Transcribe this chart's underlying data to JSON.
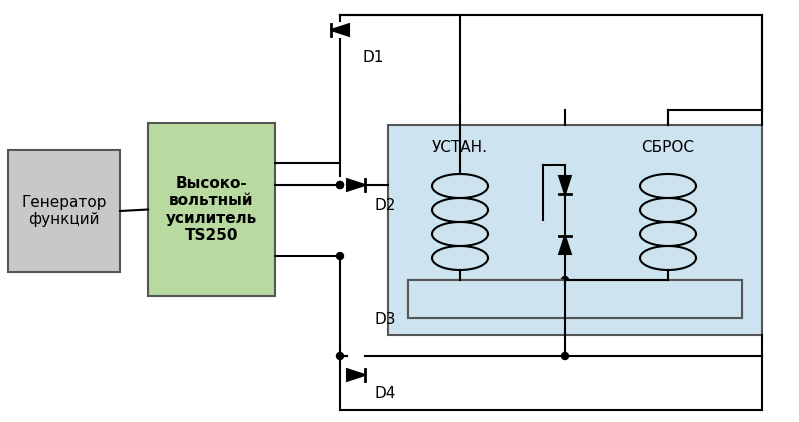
{
  "bg_color": "#ffffff",
  "relay_box_color": "#cde4f0",
  "relay_box_edge": "#555555",
  "gen_box_color": "#c8c8c8",
  "gen_box_edge": "#555555",
  "amp_box_color": "#b8d9a0",
  "amp_box_edge": "#555555",
  "line_color": "#000000",
  "text_color": "#000000",
  "gen_label": "Генератор\nфункций",
  "amp_label": "Высоко-\nвольтный\nусилитель\nTS250",
  "ustanov_label": "УСТАН.",
  "sbros_label": "СБРОС",
  "d1_label": "D1",
  "d2_label": "D2",
  "d3_label": "D3",
  "d4_label": "D4"
}
